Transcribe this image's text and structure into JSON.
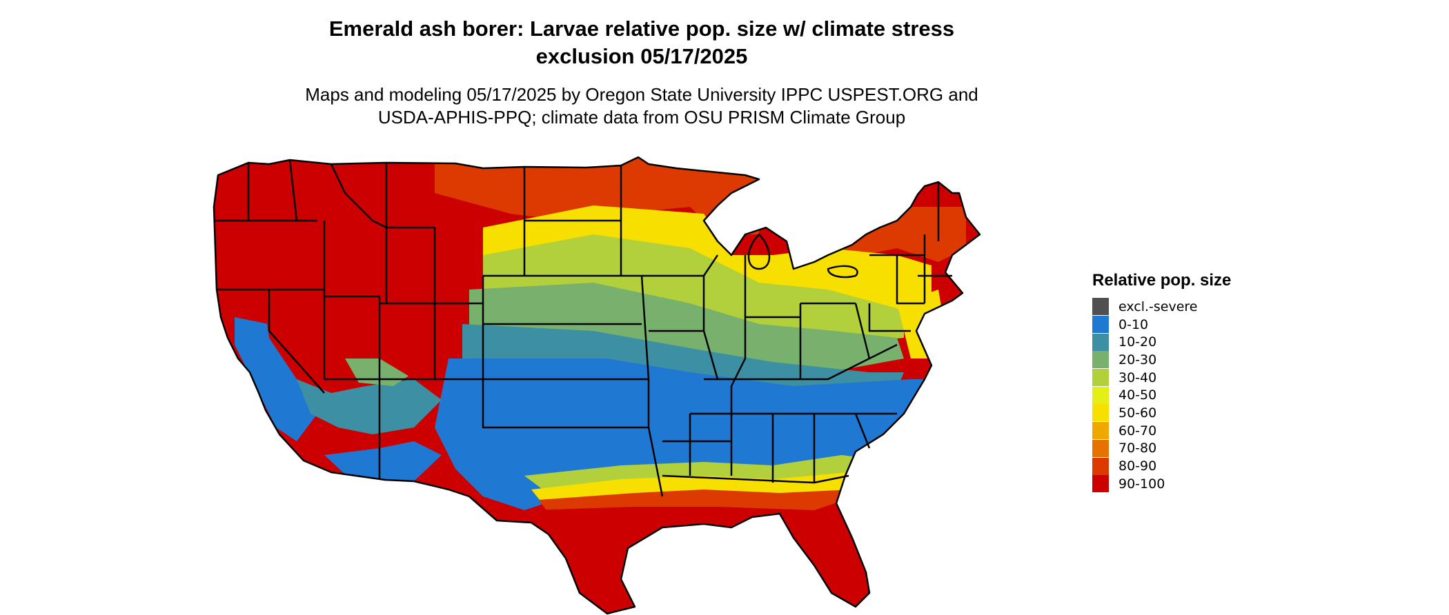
{
  "title": {
    "line1": "Emerald ash borer: Larvae relative pop. size w/ climate stress",
    "line2": "exclusion 05/17/2025"
  },
  "subtitle": {
    "line1": "Maps and modeling 05/17/2025 by Oregon State University IPPC USPEST.ORG and",
    "line2": "USDA-APHIS-PPQ; climate data from OSU PRISM Climate Group"
  },
  "legend": {
    "title": "Relative pop. size",
    "items": [
      {
        "label": "excl.-severe",
        "color": "#505050"
      },
      {
        "label": "0-10",
        "color": "#1f78d1"
      },
      {
        "label": "10-20",
        "color": "#3d8fa3"
      },
      {
        "label": "20-30",
        "color": "#78b06e"
      },
      {
        "label": "30-40",
        "color": "#b2cf3c"
      },
      {
        "label": "40-50",
        "color": "#e3ef15"
      },
      {
        "label": "50-60",
        "color": "#f7df00"
      },
      {
        "label": "60-70",
        "color": "#f0a800"
      },
      {
        "label": "70-80",
        "color": "#e67300"
      },
      {
        "label": "80-90",
        "color": "#dc3a00"
      },
      {
        "label": "90-100",
        "color": "#cc0000"
      }
    ]
  }
}
